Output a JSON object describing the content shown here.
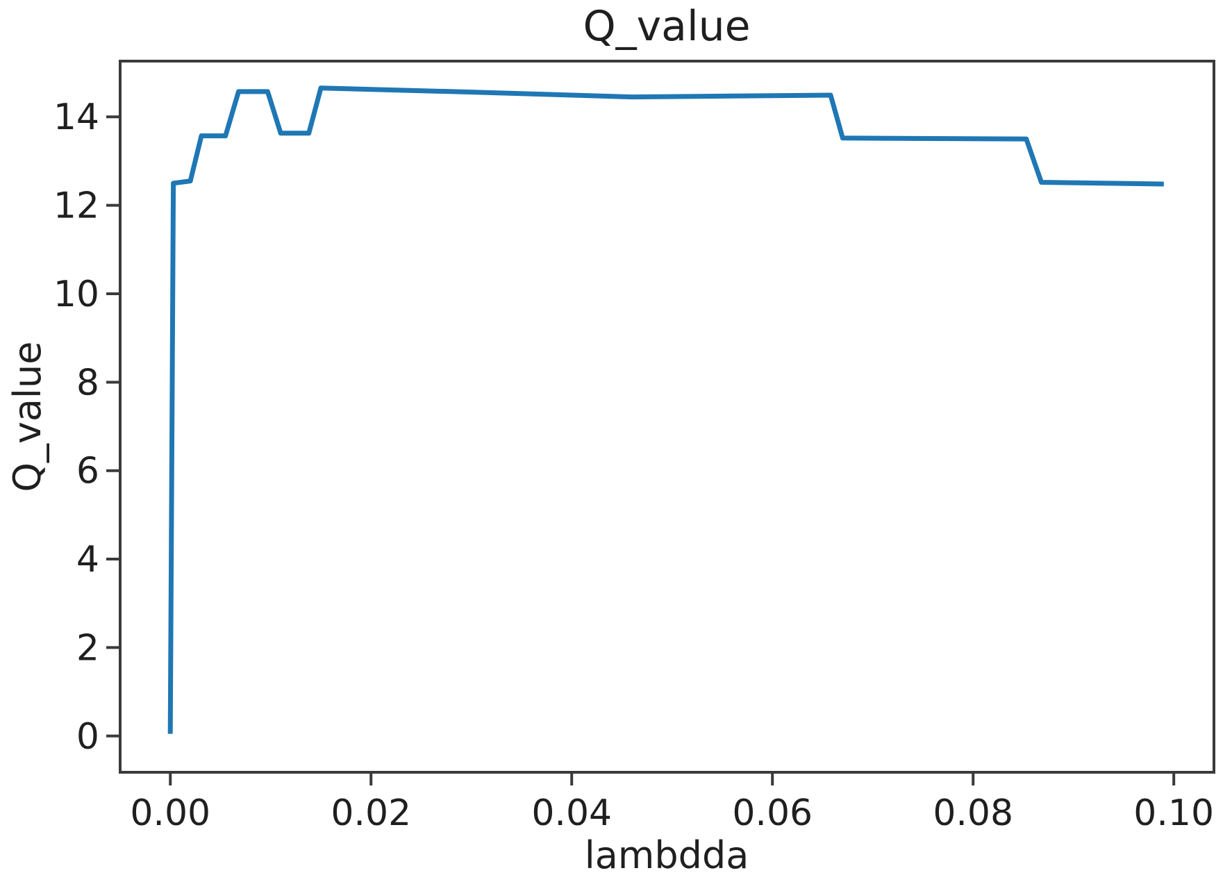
{
  "figure": {
    "title": "Q_value",
    "x_axis_label": "lambdda",
    "y_axis_label": "Q_value",
    "background_color": "#ffffff"
  },
  "chart_data": {
    "type": "line",
    "title": "Q_value",
    "xlabel": "lambdda",
    "ylabel": "Q_value",
    "grid": false,
    "legend": "none",
    "line_color": "#1f77b4",
    "xlim": [
      -0.005,
      0.104
    ],
    "ylim": [
      -0.82,
      15.26
    ],
    "x_ticks": [
      0.0,
      0.02,
      0.04,
      0.06,
      0.08,
      0.1
    ],
    "x_tick_labels": [
      "0.00",
      "0.02",
      "0.04",
      "0.06",
      "0.08",
      "0.10"
    ],
    "y_ticks": [
      0,
      2,
      4,
      6,
      8,
      10,
      12,
      14
    ],
    "y_tick_labels": [
      "0",
      "2",
      "4",
      "6",
      "8",
      "10",
      "12",
      "14"
    ],
    "series": [
      {
        "name": "Q_value",
        "x": [
          0.0,
          0.0003,
          0.002,
          0.0031,
          0.0055,
          0.0068,
          0.0097,
          0.011,
          0.0138,
          0.015,
          0.03,
          0.046,
          0.056,
          0.0658,
          0.067,
          0.0853,
          0.0868,
          0.099
        ],
        "y": [
          0.05,
          12.5,
          12.55,
          13.57,
          13.57,
          14.57,
          14.57,
          13.63,
          13.63,
          14.65,
          14.56,
          14.45,
          14.47,
          14.49,
          13.52,
          13.5,
          12.52,
          12.48
        ]
      }
    ]
  }
}
